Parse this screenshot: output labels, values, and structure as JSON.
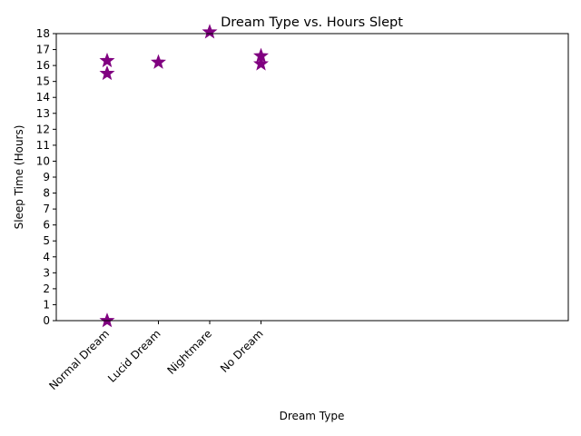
{
  "chart_data": {
    "type": "scatter",
    "title": "Dream Type vs. Hours Slept",
    "xlabel": "Dream Type",
    "ylabel": "Sleep Time (Hours)",
    "categories": [
      "Normal Dream",
      "Lucid Dream",
      "Nightmare",
      "No Dream"
    ],
    "ylim": [
      0,
      18
    ],
    "yticks": [
      0,
      1,
      2,
      3,
      4,
      5,
      6,
      7,
      8,
      9,
      10,
      11,
      12,
      13,
      14,
      15,
      16,
      17,
      18
    ],
    "grid": false,
    "marker": "star",
    "color": "#800080",
    "points": [
      {
        "x": "Normal Dream",
        "y": 16.3
      },
      {
        "x": "Normal Dream",
        "y": 15.5
      },
      {
        "x": "Normal Dream",
        "y": 0.0
      },
      {
        "x": "Lucid Dream",
        "y": 16.2
      },
      {
        "x": "Nightmare",
        "y": 18.1
      },
      {
        "x": "No Dream",
        "y": 16.6
      },
      {
        "x": "No Dream",
        "y": 16.1
      }
    ]
  }
}
